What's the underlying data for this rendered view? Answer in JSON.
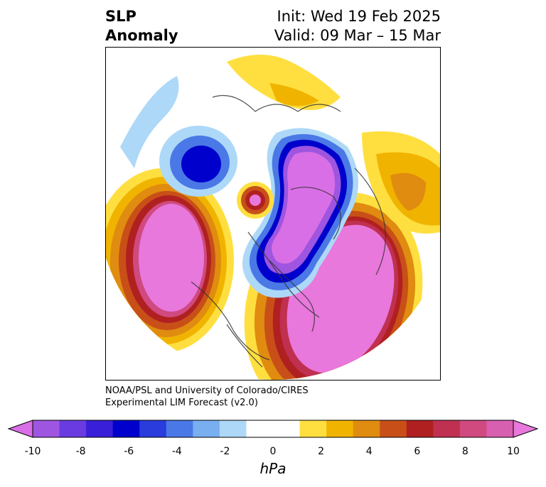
{
  "title": {
    "left_line1": "SLP",
    "left_line2": "Anomaly",
    "right_line1": "Init: Wed 19 Feb 2025",
    "right_line2": "Valid: 09 Mar – 15 Mar"
  },
  "credit": {
    "line1": "NOAA/PSL and University of Colorado/CIRES",
    "line2": "Experimental LIM Forecast (v2.0)"
  },
  "colorbar": {
    "unit": "hPa",
    "tick_labels": [
      "-10",
      "-8",
      "-6",
      "-4",
      "-2",
      "0",
      "2",
      "4",
      "6",
      "8",
      "10"
    ],
    "colors": [
      "#9e55e0",
      "#6a3be0",
      "#3a1fd8",
      "#0000cc",
      "#2a3cdc",
      "#4a78e6",
      "#79aef0",
      "#add8f8",
      "#ffffff",
      "#ffffff",
      "#ffdf40",
      "#f0b400",
      "#e08c10",
      "#c85018",
      "#b02020",
      "#c03050",
      "#d04a80",
      "#d860b0"
    ],
    "under_color": "#d96fe6",
    "over_color": "#e878dc"
  },
  "map": {
    "features": [
      "negative-anomaly-arctic",
      "negative-anomaly-canada",
      "negative-anomaly-siberia",
      "positive-anomaly-north-pacific",
      "positive-anomaly-north-atlantic",
      "positive-anomaly-east-asia",
      "positive-anomaly-kamchatka"
    ]
  }
}
